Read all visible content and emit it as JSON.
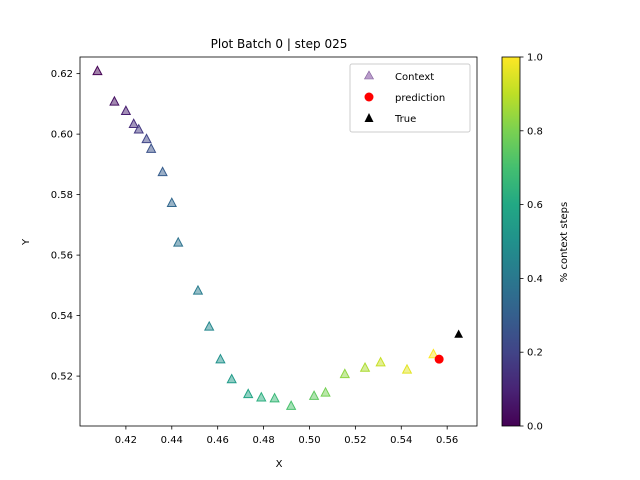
{
  "chart_data": {
    "type": "scatter",
    "title": "Plot Batch 0 | step 025",
    "xlabel": "X",
    "ylabel": "Y",
    "xlim": [
      0.4,
      0.573
    ],
    "ylim": [
      0.5035,
      0.6255
    ],
    "xticks": [
      "0.42",
      "0.44",
      "0.46",
      "0.48",
      "0.50",
      "0.52",
      "0.54",
      "0.56"
    ],
    "yticks": [
      "0.52",
      "0.54",
      "0.56",
      "0.58",
      "0.60",
      "0.62"
    ],
    "grid": false,
    "legend_placement": "top-right",
    "legend": [
      "Context",
      "prediction",
      "True"
    ],
    "series": [
      {
        "name": "Context",
        "marker": "triangle",
        "color_by": "percent_context_steps",
        "x": [
          0.4076,
          0.415,
          0.42,
          0.4234,
          0.4256,
          0.429,
          0.431,
          0.436,
          0.44,
          0.4428,
          0.4514,
          0.4563,
          0.4612,
          0.4661,
          0.4733,
          0.479,
          0.4848,
          0.492,
          0.502,
          0.507,
          0.5154,
          0.5242,
          0.531,
          0.5425,
          0.554
        ],
        "y": [
          0.6209,
          0.6108,
          0.6077,
          0.6034,
          0.6016,
          0.5984,
          0.5952,
          0.5875,
          0.5773,
          0.5642,
          0.5483,
          0.5364,
          0.5256,
          0.519,
          0.5141,
          0.513,
          0.5127,
          0.5102,
          0.5135,
          0.5146,
          0.5207,
          0.5228,
          0.5246,
          0.5222,
          0.5273
        ]
      },
      {
        "name": "prediction",
        "marker": "circle",
        "color": "#ff0000",
        "x": [
          0.5565
        ],
        "y": [
          0.5256
        ]
      },
      {
        "name": "True",
        "marker": "triangle",
        "color": "#000000",
        "x": [
          0.565
        ],
        "y": [
          0.5339
        ]
      }
    ],
    "colorbar": {
      "label": "% context steps",
      "range": [
        0.0,
        1.0
      ],
      "ticks": [
        "0.0",
        "0.2",
        "0.4",
        "0.6",
        "0.8",
        "1.0"
      ],
      "colormap": "viridis"
    }
  }
}
